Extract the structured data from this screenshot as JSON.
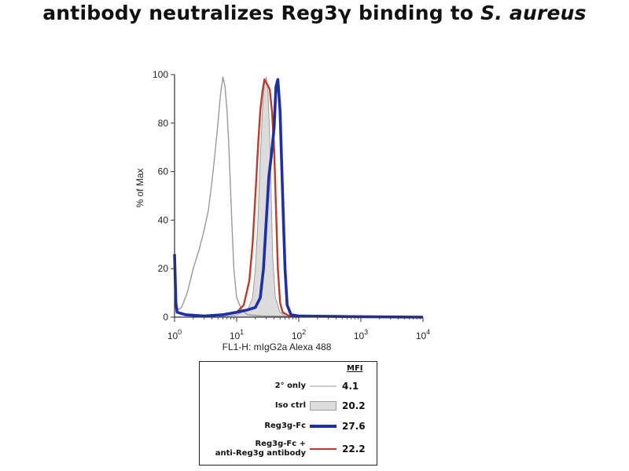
{
  "title": {
    "prefix": "antibody neutralizes Reg3",
    "gamma": "γ",
    "middle": " binding to ",
    "species": "S. aureus"
  },
  "chart_data": {
    "type": "line",
    "xlabel": "FL1-H: mIgG2a Alexa 488",
    "ylabel": "% of Max",
    "x_scale": "log",
    "xlim": [
      1,
      10000
    ],
    "ylim": [
      0,
      100
    ],
    "x_ticks": [
      {
        "base": "10",
        "exp": "0",
        "value": 1
      },
      {
        "base": "10",
        "exp": "1",
        "value": 10
      },
      {
        "base": "10",
        "exp": "2",
        "value": 100
      },
      {
        "base": "10",
        "exp": "3",
        "value": 1000
      },
      {
        "base": "10",
        "exp": "4",
        "value": 10000
      }
    ],
    "y_ticks": [
      "0",
      "20",
      "40",
      "60",
      "80",
      "100"
    ],
    "series": [
      {
        "name": "2° only",
        "color": "#9a9a9a",
        "fill": false,
        "points": [
          [
            1,
            25
          ],
          [
            1.05,
            8
          ],
          [
            1.12,
            3
          ],
          [
            1.3,
            4
          ],
          [
            1.6,
            10
          ],
          [
            2,
            20
          ],
          [
            2.5,
            28
          ],
          [
            3,
            36
          ],
          [
            3.5,
            44
          ],
          [
            4,
            56
          ],
          [
            4.5,
            68
          ],
          [
            5,
            80
          ],
          [
            5.5,
            92
          ],
          [
            6,
            99
          ],
          [
            6.5,
            95
          ],
          [
            7,
            85
          ],
          [
            7.5,
            70
          ],
          [
            8,
            52
          ],
          [
            8.5,
            35
          ],
          [
            9,
            20
          ],
          [
            10,
            8
          ],
          [
            12,
            3
          ],
          [
            15,
            1
          ],
          [
            25,
            0.5
          ],
          [
            100,
            0.3
          ],
          [
            10000,
            0
          ]
        ]
      },
      {
        "name": "Iso ctrl",
        "color": "#bdbdbd",
        "fill": true,
        "points": [
          [
            1,
            0
          ],
          [
            5,
            0
          ],
          [
            10,
            1
          ],
          [
            15,
            3
          ],
          [
            18,
            8
          ],
          [
            20,
            20
          ],
          [
            22,
            40
          ],
          [
            24,
            65
          ],
          [
            26,
            85
          ],
          [
            28,
            96
          ],
          [
            30,
            99
          ],
          [
            32,
            92
          ],
          [
            34,
            75
          ],
          [
            36,
            50
          ],
          [
            38,
            25
          ],
          [
            42,
            8
          ],
          [
            50,
            2
          ],
          [
            60,
            0.5
          ],
          [
            100,
            0
          ],
          [
            10000,
            0
          ]
        ]
      },
      {
        "name": "Reg3g-Fc",
        "color": "#1f2fa8",
        "fill": false,
        "points": [
          [
            1,
            26
          ],
          [
            1.05,
            6
          ],
          [
            1.1,
            2
          ],
          [
            1.5,
            1
          ],
          [
            3,
            0.5
          ],
          [
            6,
            1
          ],
          [
            10,
            2
          ],
          [
            15,
            3
          ],
          [
            20,
            4
          ],
          [
            24,
            8
          ],
          [
            27,
            20
          ],
          [
            30,
            40
          ],
          [
            33,
            58
          ],
          [
            36,
            66
          ],
          [
            40,
            78
          ],
          [
            43,
            95
          ],
          [
            46,
            98
          ],
          [
            50,
            85
          ],
          [
            55,
            50
          ],
          [
            60,
            20
          ],
          [
            65,
            5
          ],
          [
            75,
            1
          ],
          [
            100,
            0.5
          ],
          [
            1000,
            0.2
          ],
          [
            10000,
            0
          ]
        ]
      },
      {
        "name": "Reg3g-Fc + anti-Reg3g antibody",
        "color": "#c0392b",
        "fill": false,
        "points": [
          [
            1,
            25
          ],
          [
            1.05,
            6
          ],
          [
            1.1,
            2
          ],
          [
            1.5,
            1
          ],
          [
            3,
            0.5
          ],
          [
            6,
            1
          ],
          [
            10,
            2
          ],
          [
            13,
            5
          ],
          [
            16,
            15
          ],
          [
            18,
            30
          ],
          [
            20,
            50
          ],
          [
            22,
            70
          ],
          [
            24,
            85
          ],
          [
            26,
            93
          ],
          [
            28,
            98
          ],
          [
            31,
            96
          ],
          [
            34,
            94
          ],
          [
            37,
            85
          ],
          [
            40,
            70
          ],
          [
            43,
            45
          ],
          [
            46,
            20
          ],
          [
            50,
            6
          ],
          [
            55,
            2
          ],
          [
            70,
            0.5
          ],
          [
            10000,
            0
          ]
        ]
      }
    ]
  },
  "legend": {
    "header": "MFI",
    "entries": [
      {
        "label_lines": [
          "2°  only"
        ],
        "mfi": "4.1",
        "swatch": "gray-line"
      },
      {
        "label_lines": [
          "Iso ctrl"
        ],
        "mfi": "20.2",
        "swatch": "gray-fill"
      },
      {
        "label_lines": [
          "Reg3g-Fc"
        ],
        "mfi": "27.6",
        "swatch": "blue-line"
      },
      {
        "label_lines": [
          "Reg3g-Fc +",
          "anti-Reg3g antibody"
        ],
        "mfi": "22.2",
        "swatch": "red-line"
      }
    ]
  }
}
